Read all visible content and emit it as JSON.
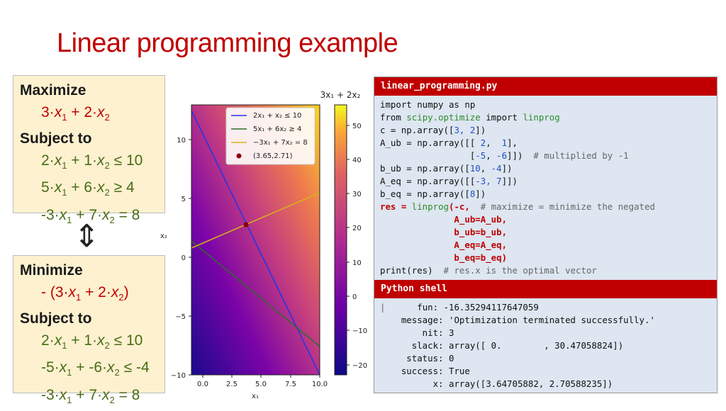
{
  "title": "Linear programming example",
  "maximize_box": {
    "heading": "Maximize",
    "objective": [
      "3·",
      "x",
      "1",
      " + 2·",
      "x",
      "2"
    ],
    "subject_to": "Subject to",
    "constraints": [
      [
        "2·",
        "x",
        "1",
        " + 1·",
        "x",
        "2",
        " ≤ 10"
      ],
      [
        "5·",
        "x",
        "1",
        " + 6·",
        "x",
        "2",
        " ≥ 4"
      ],
      [
        "-3·",
        "x",
        "1",
        " + 7·",
        "x",
        "2",
        " = 8"
      ]
    ]
  },
  "equivalence_symbol": "⇕",
  "minimize_box": {
    "heading": "Minimize",
    "objective": [
      "- (3·",
      "x",
      "1",
      " + 2·",
      "x",
      "2",
      ")"
    ],
    "subject_to": "Subject to",
    "constraints": [
      [
        "2·",
        "x",
        "1",
        " + 1·",
        "x",
        "2",
        " ≤ 10"
      ],
      [
        "-5·",
        "x",
        "1",
        " + -6·",
        "x",
        "2",
        " ≤ -4"
      ],
      [
        "-3·",
        "x",
        "1",
        " + 7·",
        "x",
        "2",
        " = 8"
      ]
    ]
  },
  "plot": {
    "colorbar_title": "3x₁ + 2x₂",
    "xlabel": "x₁",
    "ylabel": "x₂",
    "x_ticks": [
      "0.0",
      "2.5",
      "5.0",
      "7.5",
      "10.0"
    ],
    "y_ticks": [
      "10",
      "5",
      "0",
      "−5",
      "−10"
    ],
    "colorbar_ticks": [
      "50",
      "40",
      "30",
      "20",
      "10",
      "0",
      "−10",
      "−20"
    ],
    "legend": [
      "2x₁ + x₂ ≤ 10",
      "5x₁ + 6x₂ ≥ 4",
      "−3x₁ + 7x₂ = 8",
      "(3.65,2.71)"
    ],
    "colors": {
      "blue": "#2233ee",
      "green": "#2e6b2e",
      "yellow": "#d8b21a",
      "point": "#8b0000"
    }
  },
  "code_panel": {
    "filename": "linear_programming.py",
    "shell_title": "Python shell"
  },
  "shell_output": {
    "fun": "   fun: -16.35294117647059",
    "message": "message: 'Optimization terminated successfully.'",
    "nit": "    nit: 3",
    "slack": "  slack: array([ 0.        , 30.47058824])",
    "status": " status: 0",
    "success": "success: True",
    "x": "      x: array([3.64705882, 2.70588235])"
  }
}
